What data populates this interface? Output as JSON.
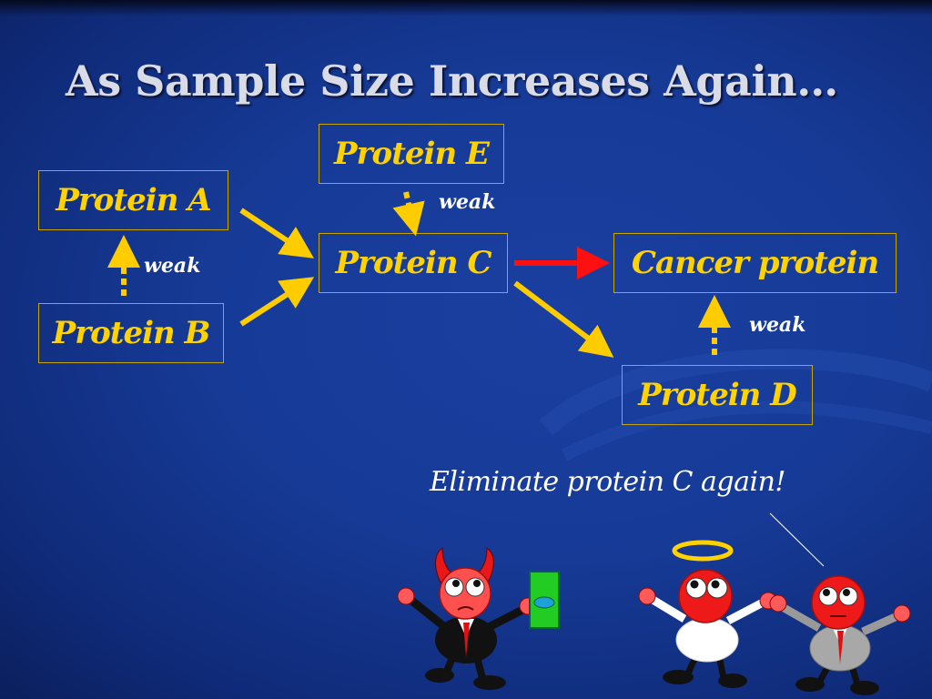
{
  "slide": {
    "title": "As Sample Size Increases Again…",
    "caption": "Eliminate protein C again!"
  },
  "nodes": {
    "protein_a": "Protein A",
    "protein_b": "Protein B",
    "protein_c": "Protein C",
    "protein_d": "Protein D",
    "protein_e": "Protein E",
    "cancer": "Cancer protein"
  },
  "edge_labels": {
    "b_to_a": "weak",
    "e_to_c": "weak",
    "d_to_cancer": "weak"
  },
  "colors": {
    "text_yellow": "#ffd200",
    "arrow_yellow": "#ffcc00",
    "arrow_red": "#ff1010",
    "background": "#163a96"
  },
  "figures": [
    "devil-figure",
    "angel-figure",
    "bystander-figure"
  ]
}
